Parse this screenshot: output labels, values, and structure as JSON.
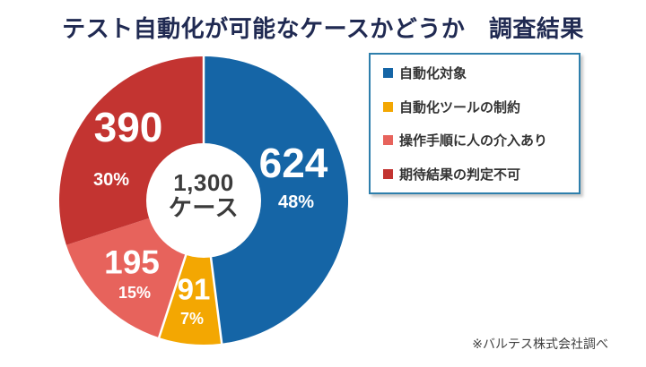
{
  "title": "テスト自動化が可能なケースかどうか　調査結果",
  "source_note": "※バルテス株式会社調べ",
  "center_label": {
    "line1": "1,300",
    "line2": "ケース"
  },
  "colors": {
    "title_navy": "#202a52",
    "legend_border": "#2e7fac",
    "slice_label_text": "#ffffff",
    "center_text": "#3b3b3b"
  },
  "chart_data": {
    "type": "pie",
    "donut": true,
    "title": "テスト自動化が可能なケースかどうか　調査結果",
    "total": 1300,
    "total_label": "1,300 ケース",
    "start_angle_deg": 0,
    "direction": "clockwise",
    "legend_position": "right",
    "slices": [
      {
        "label": "自動化対象",
        "value": 624,
        "value_label": "624",
        "pct": "48%",
        "color": "#1565a6"
      },
      {
        "label": "自動化ツールの制約",
        "value": 91,
        "value_label": "91",
        "pct": "7%",
        "color": "#f3a702"
      },
      {
        "label": "操作手順に人の介入あり",
        "value": 195,
        "value_label": "195",
        "pct": "15%",
        "color": "#e7635c"
      },
      {
        "label": "期待結果の判定不可",
        "value": 390,
        "value_label": "390",
        "pct": "30%",
        "color": "#c33431"
      }
    ]
  }
}
